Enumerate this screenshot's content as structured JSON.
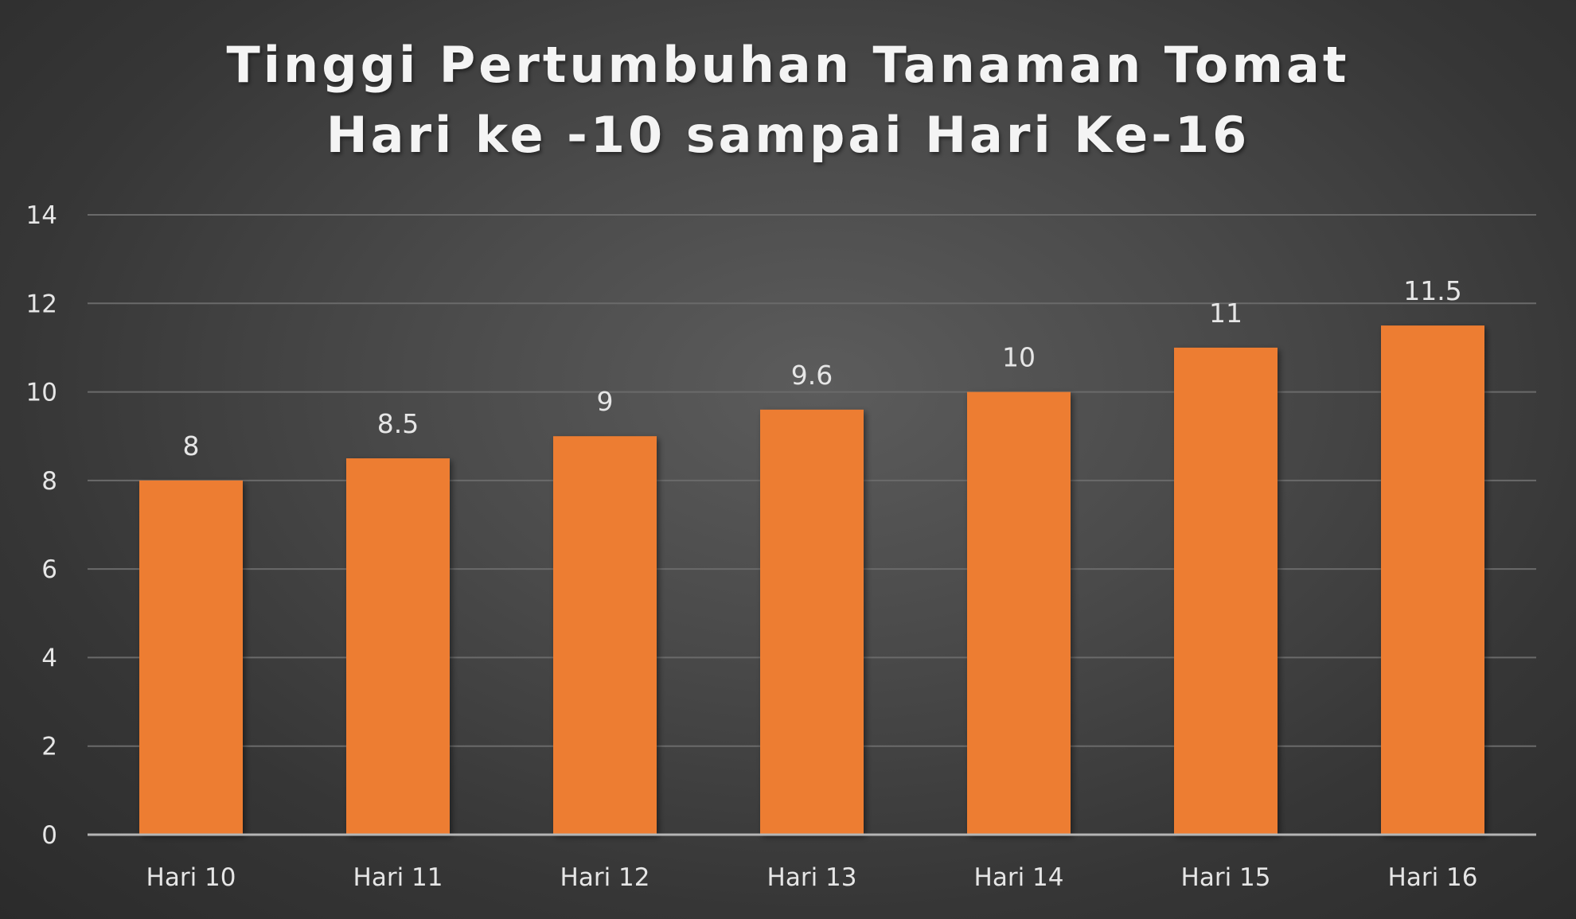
{
  "chart_data": {
    "type": "bar",
    "title_lines": [
      "Tinggi Pertumbuhan Tanaman Tomat",
      "Hari ke -10 sampai Hari Ke-16"
    ],
    "categories": [
      "Hari 10",
      "Hari 11",
      "Hari 12",
      "Hari 13",
      "Hari 14",
      "Hari 15",
      "Hari 16"
    ],
    "values": [
      8,
      8.5,
      9,
      9.6,
      10,
      11,
      11.5
    ],
    "value_labels": [
      "8",
      "8.5",
      "9",
      "9.6",
      "10",
      "11",
      "11.5"
    ],
    "ylim": [
      0,
      14
    ],
    "yticks": [
      0,
      2,
      4,
      6,
      8,
      10,
      12,
      14
    ],
    "grid": true,
    "legend": "none",
    "bar_color": "#ed7d31",
    "background_color": "#404040",
    "text_color": "#e6e6e6"
  }
}
